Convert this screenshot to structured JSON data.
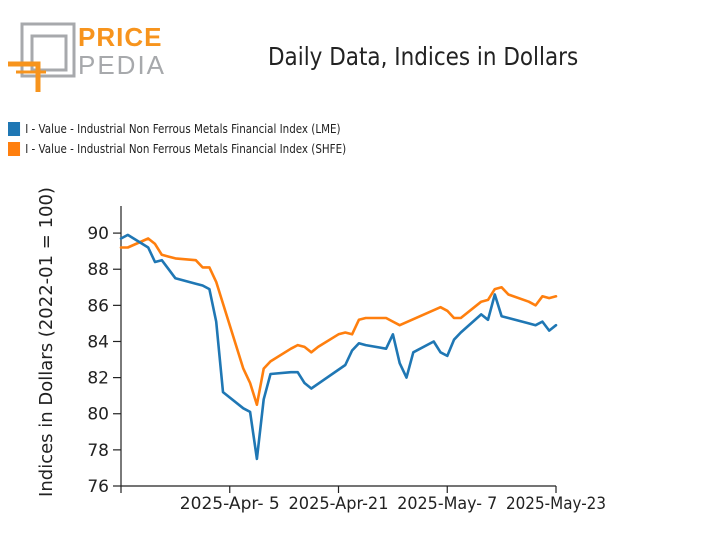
{
  "brand": {
    "top": "PRICE",
    "bottom": "PEDIA"
  },
  "colors": {
    "lme": "#1f77b4",
    "shfe": "#ff7f0e",
    "logo_orange": "#f7941d",
    "logo_gray": "#a7a9ac"
  },
  "chart_data": {
    "type": "line",
    "title": "Daily Data, Indices in Dollars",
    "ylabel": "Indices in Dollars (2022-01 = 100)",
    "xlabel": "",
    "ylim": [
      76,
      91.5
    ],
    "yticks": [
      76,
      78,
      80,
      82,
      84,
      86,
      88,
      90
    ],
    "xlim": [
      "2025-03-20",
      "2025-05-23"
    ],
    "xticks": [
      "2025-Apr- 5",
      "2025-Apr-21",
      "2025-May- 7",
      "2025-May-23"
    ],
    "xtick_dates": [
      "2025-04-05",
      "2025-04-21",
      "2025-05-07",
      "2025-05-23"
    ],
    "series": [
      {
        "name": "I - Value - Industrial Non Ferrous Metals Financial Index (LME)",
        "color": "#1f77b4",
        "x": [
          "2025-03-20",
          "2025-03-21",
          "2025-03-24",
          "2025-03-25",
          "2025-03-26",
          "2025-03-27",
          "2025-03-28",
          "2025-03-31",
          "2025-04-01",
          "2025-04-02",
          "2025-04-03",
          "2025-04-04",
          "2025-04-07",
          "2025-04-08",
          "2025-04-09",
          "2025-04-10",
          "2025-04-11",
          "2025-04-14",
          "2025-04-15",
          "2025-04-16",
          "2025-04-17",
          "2025-04-22",
          "2025-04-23",
          "2025-04-24",
          "2025-04-25",
          "2025-04-28",
          "2025-04-29",
          "2025-04-30",
          "2025-05-01",
          "2025-05-02",
          "2025-05-05",
          "2025-05-06",
          "2025-05-07",
          "2025-05-08",
          "2025-05-09",
          "2025-05-12",
          "2025-05-13",
          "2025-05-14",
          "2025-05-15",
          "2025-05-16",
          "2025-05-19",
          "2025-05-20",
          "2025-05-21",
          "2025-05-22",
          "2025-05-23"
        ],
        "y": [
          89.7,
          89.9,
          89.2,
          88.4,
          88.5,
          88.0,
          87.5,
          87.2,
          87.1,
          86.9,
          85.1,
          81.2,
          80.3,
          80.1,
          77.5,
          80.8,
          82.2,
          82.3,
          82.3,
          81.7,
          81.4,
          82.7,
          83.5,
          83.9,
          83.8,
          83.6,
          84.4,
          82.8,
          82.0,
          83.4,
          84.0,
          83.4,
          83.2,
          84.1,
          84.5,
          85.5,
          85.2,
          86.6,
          85.4,
          85.3,
          85.0,
          84.9,
          85.1,
          84.6,
          84.9
        ]
      },
      {
        "name": "I - Value - Industrial Non Ferrous Metals Financial Index (SHFE)",
        "color": "#ff7f0e",
        "x": [
          "2025-03-20",
          "2025-03-21",
          "2025-03-24",
          "2025-03-25",
          "2025-03-26",
          "2025-03-27",
          "2025-03-28",
          "2025-03-31",
          "2025-04-01",
          "2025-04-02",
          "2025-04-03",
          "2025-04-07",
          "2025-04-08",
          "2025-04-09",
          "2025-04-10",
          "2025-04-11",
          "2025-04-14",
          "2025-04-15",
          "2025-04-16",
          "2025-04-17",
          "2025-04-18",
          "2025-04-21",
          "2025-04-22",
          "2025-04-23",
          "2025-04-24",
          "2025-04-25",
          "2025-04-28",
          "2025-04-29",
          "2025-04-30",
          "2025-05-06",
          "2025-05-07",
          "2025-05-08",
          "2025-05-09",
          "2025-05-12",
          "2025-05-13",
          "2025-05-14",
          "2025-05-15",
          "2025-05-16",
          "2025-05-19",
          "2025-05-20",
          "2025-05-21",
          "2025-05-22",
          "2025-05-23"
        ],
        "y": [
          89.2,
          89.2,
          89.7,
          89.4,
          88.8,
          88.7,
          88.6,
          88.5,
          88.1,
          88.1,
          87.3,
          82.5,
          81.7,
          80.5,
          82.5,
          82.9,
          83.6,
          83.8,
          83.7,
          83.4,
          83.7,
          84.4,
          84.5,
          84.4,
          85.2,
          85.3,
          85.3,
          85.1,
          84.9,
          85.9,
          85.7,
          85.3,
          85.3,
          86.2,
          86.3,
          86.9,
          87.0,
          86.6,
          86.2,
          86.0,
          86.5,
          86.4,
          86.5
        ]
      }
    ]
  }
}
